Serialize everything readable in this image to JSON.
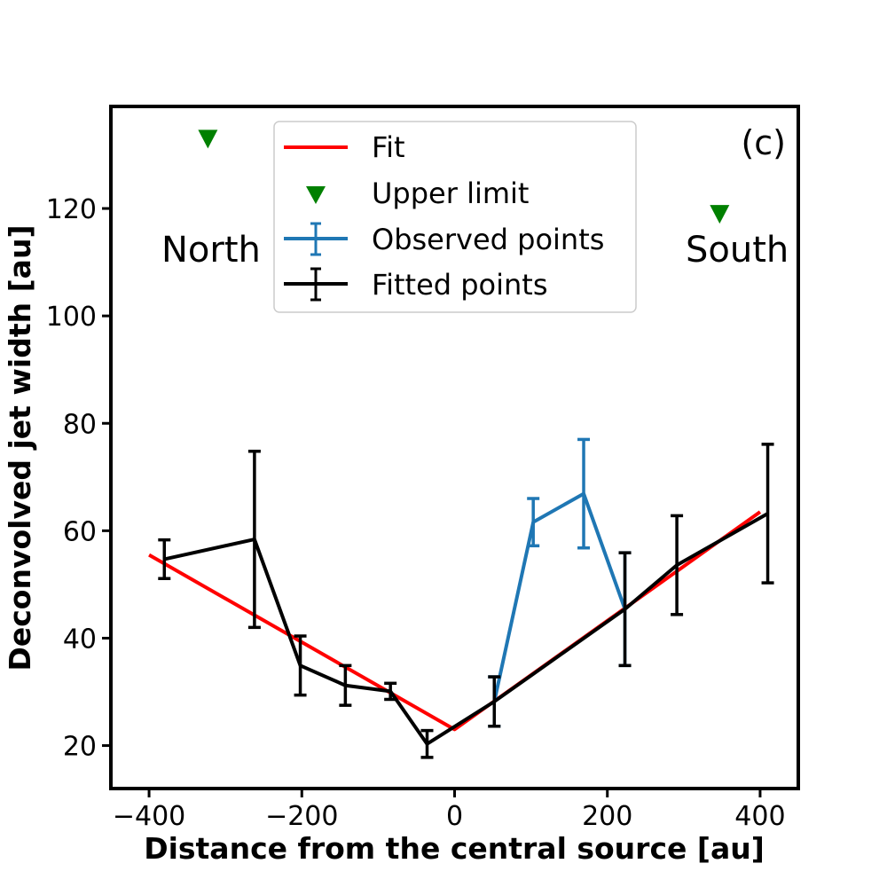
{
  "chart_data": {
    "type": "line",
    "xlabel": "Distance from the central source [au]",
    "ylabel": "Deconvolved jet width [au]",
    "xlim": [
      -450,
      450
    ],
    "ylim": [
      12,
      139
    ],
    "x_ticks": [
      -400,
      -200,
      0,
      200,
      400
    ],
    "x_tick_labels": [
      "−400",
      "−200",
      "0",
      "200",
      "400"
    ],
    "y_ticks": [
      20,
      40,
      60,
      80,
      100,
      120
    ],
    "y_tick_labels": [
      "20",
      "40",
      "60",
      "80",
      "100",
      "120"
    ],
    "panel_label": "(c)",
    "annotations": [
      {
        "text": "North",
        "x": -310,
        "y": 110
      },
      {
        "text": "South",
        "x": 375,
        "y": 110
      }
    ],
    "legend": {
      "placement": "top-center",
      "entries": [
        {
          "label": "Fit",
          "kind": "line",
          "color": "#ff0000"
        },
        {
          "label": "Upper limit",
          "kind": "marker",
          "color": "#008000"
        },
        {
          "label": "Observed points",
          "kind": "errorbar",
          "color": "#1f77b4"
        },
        {
          "label": "Fitted points",
          "kind": "errorbar",
          "color": "#000000"
        }
      ]
    },
    "series": [
      {
        "name": "Fit",
        "color": "#ff0000",
        "x": [
          -400,
          0,
          400
        ],
        "y": [
          55.5,
          23,
          63.5
        ]
      },
      {
        "name": "Upper limit",
        "color": "#008000",
        "x": [
          -323,
          347
        ],
        "y": [
          133,
          119
        ]
      },
      {
        "name": "Observed points",
        "color": "#1f77b4",
        "x": [
          52,
          103,
          169,
          223
        ],
        "y": [
          28.2,
          61.6,
          66.9,
          45.4
        ],
        "err": [
          4.6,
          4.4,
          10.1,
          10.5
        ]
      },
      {
        "name": "Fitted points",
        "color": "#000000",
        "x": [
          -380,
          -262,
          -202,
          -143,
          -84,
          -36,
          52,
          223,
          291,
          410
        ],
        "y": [
          54.7,
          58.4,
          34.9,
          31.2,
          30.1,
          20.3,
          28.2,
          45.4,
          53.6,
          63.2
        ],
        "err": [
          3.6,
          16.4,
          5.5,
          3.7,
          1.5,
          2.5,
          4.6,
          10.5,
          9.2,
          12.9
        ]
      }
    ]
  }
}
